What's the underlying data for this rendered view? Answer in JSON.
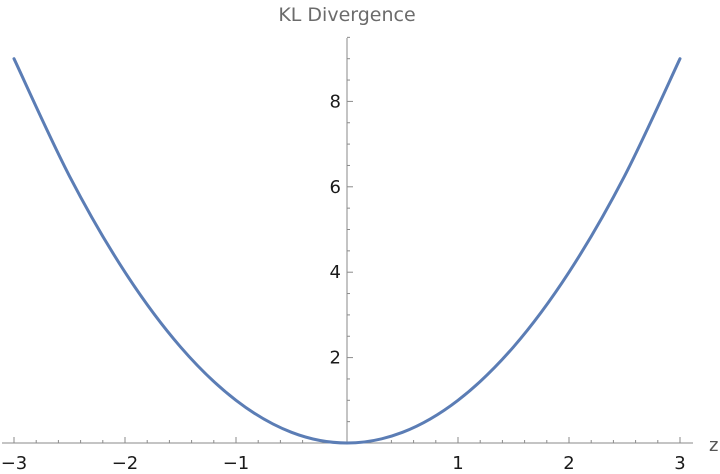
{
  "chart_data": {
    "type": "line",
    "title": "KL Divergence",
    "xlabel": "z",
    "ylabel": "",
    "xlim": [
      -3.05,
      3.12
    ],
    "ylim": [
      0,
      9.5
    ],
    "grid": false,
    "xticks": [
      -3,
      -2,
      -1,
      1,
      2,
      3
    ],
    "xtick_labels": [
      "−3",
      "−2",
      "−1",
      "1",
      "2",
      "3"
    ],
    "yticks": [
      2,
      4,
      6,
      8
    ],
    "ytick_labels": [
      "2",
      "4",
      "6",
      "8"
    ],
    "series": [
      {
        "color": "#5b7db5",
        "x": [
          -3,
          -2.5,
          -2,
          -1.5,
          -1,
          -0.5,
          0,
          0.5,
          1,
          1.5,
          2,
          2.5,
          3
        ],
        "y": [
          9,
          6.25,
          4,
          2.25,
          1,
          0.25,
          0,
          0.25,
          1,
          2.25,
          4,
          6.25,
          9
        ]
      }
    ]
  }
}
